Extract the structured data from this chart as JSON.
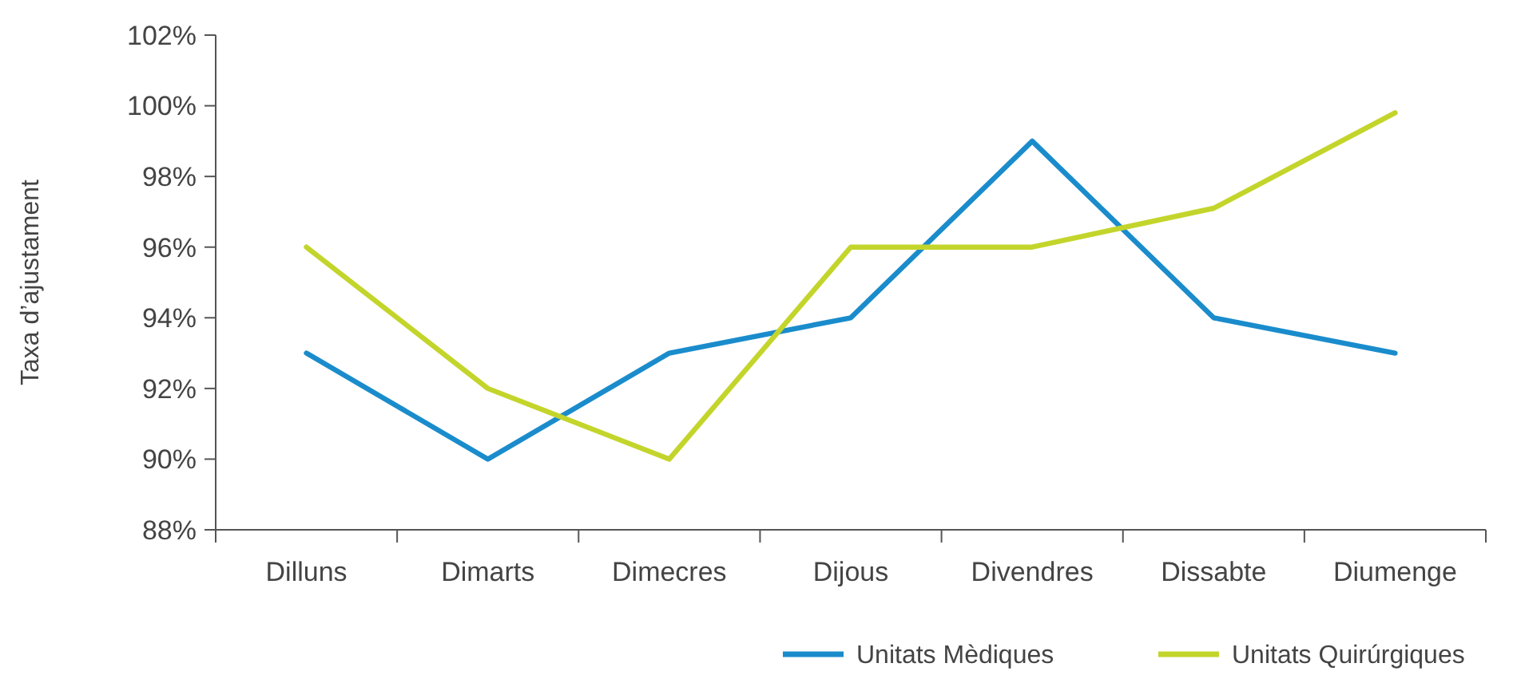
{
  "chart_data": {
    "type": "line",
    "ylabel": "Taxa d’ajustament",
    "categories": [
      "Dilluns",
      "Dimarts",
      "Dimecres",
      "Dijous",
      "Divendres",
      "Dissabte",
      "Diumenge"
    ],
    "series": [
      {
        "name": "Unitats Mèdiques",
        "color": "#1a8ccc",
        "values": [
          93,
          90,
          93,
          94,
          99,
          94,
          93
        ]
      },
      {
        "name": "Unitats Quirúrgiques",
        "color": "#c3d52b",
        "values": [
          96,
          92,
          90,
          96,
          96,
          97.1,
          99.8
        ]
      }
    ],
    "ylim": [
      88,
      102
    ],
    "yticks": [
      {
        "value": 88,
        "label": "88%"
      },
      {
        "value": 90,
        "label": "90%"
      },
      {
        "value": 92,
        "label": "92%"
      },
      {
        "value": 94,
        "label": "94%"
      },
      {
        "value": 96,
        "label": "96%"
      },
      {
        "value": 98,
        "label": "98%"
      },
      {
        "value": 100,
        "label": "100%"
      },
      {
        "value": 102,
        "label": "102%"
      }
    ],
    "grid": false,
    "legend": "bottom right",
    "marker": "none",
    "line_style": "solid"
  }
}
